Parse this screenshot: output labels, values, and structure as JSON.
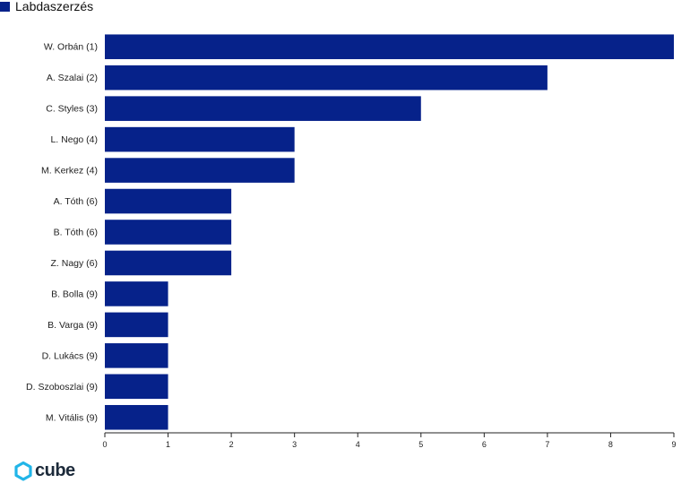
{
  "legend": {
    "label": "Labdaszerzés"
  },
  "logo": {
    "text": "cube"
  },
  "colors": {
    "bar": "#06228A",
    "axis": "#222222",
    "logo_icon": "#21b5e8"
  },
  "chart_data": {
    "type": "bar",
    "orientation": "horizontal",
    "categories": [
      "W. Orbán (1)",
      "A. Szalai (2)",
      "C. Styles (3)",
      "L. Nego (4)",
      "M. Kerkez (4)",
      "A. Tóth (6)",
      "B. Tóth (6)",
      "Z. Nagy (6)",
      "B. Bolla (9)",
      "B. Varga (9)",
      "D. Lukács (9)",
      "D. Szoboszlai (9)",
      "M. Vitális (9)"
    ],
    "series": [
      {
        "name": "Labdaszerzés",
        "values": [
          9,
          7,
          5,
          3,
          3,
          2,
          2,
          2,
          1,
          1,
          1,
          1,
          1
        ]
      }
    ],
    "xlim": [
      0,
      9
    ],
    "xticks": [
      0,
      1,
      2,
      3,
      4,
      5,
      6,
      7,
      8,
      9
    ],
    "grid": false,
    "legend_position": "top-left"
  }
}
